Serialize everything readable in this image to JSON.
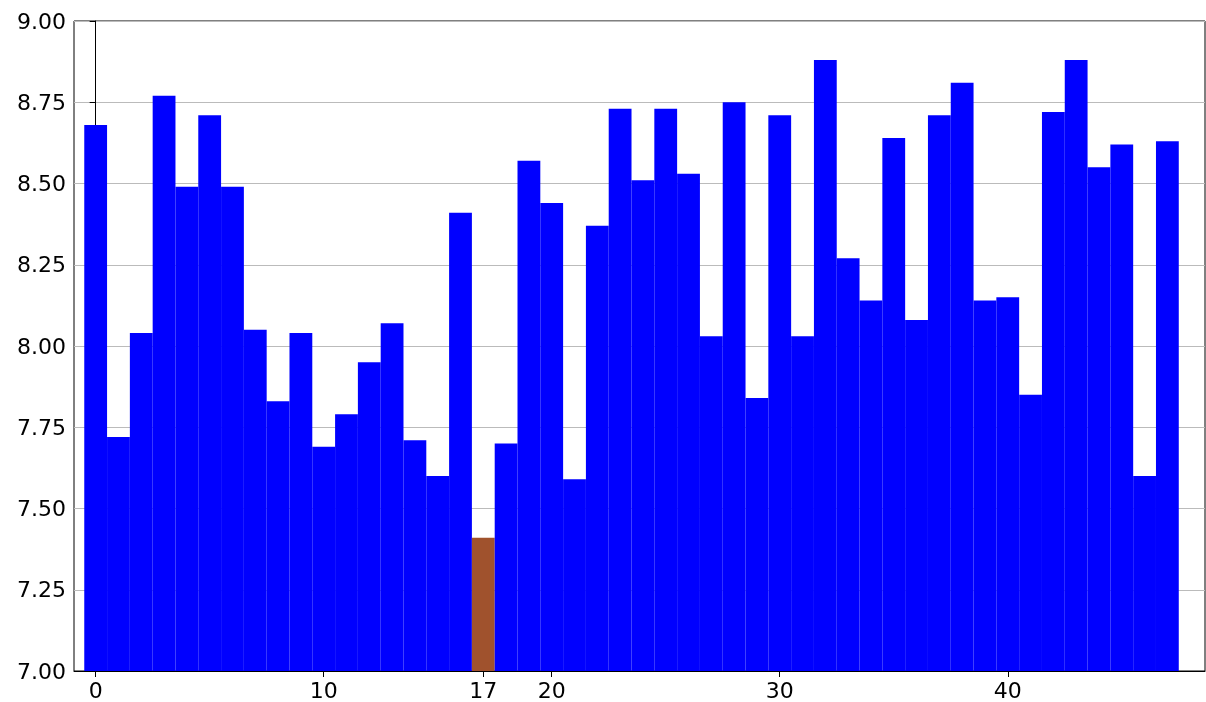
{
  "chart_data": {
    "type": "bar",
    "x": [
      0,
      1,
      2,
      3,
      4,
      5,
      6,
      7,
      8,
      9,
      10,
      11,
      12,
      13,
      14,
      15,
      16,
      17,
      18,
      19,
      20,
      21,
      22,
      23,
      24,
      25,
      26,
      27,
      28,
      29,
      30,
      31,
      32,
      33,
      34,
      35,
      36,
      37,
      38,
      39,
      40,
      41,
      42,
      43,
      44,
      45,
      46,
      47
    ],
    "values": [
      8.68,
      7.72,
      8.04,
      8.77,
      8.49,
      8.71,
      8.49,
      8.05,
      7.83,
      8.04,
      7.69,
      7.79,
      7.95,
      8.07,
      7.71,
      7.6,
      8.41,
      7.41,
      7.7,
      8.57,
      8.44,
      7.59,
      8.37,
      8.73,
      8.51,
      8.73,
      8.53,
      8.03,
      8.75,
      7.84,
      8.71,
      8.03,
      8.88,
      8.27,
      8.14,
      8.64,
      8.08,
      8.71,
      8.81,
      8.14,
      8.15,
      7.85,
      8.72,
      8.88,
      8.55,
      8.62,
      7.6,
      8.63
    ],
    "colors": [
      "#0000ff",
      "#0000ff",
      "#0000ff",
      "#0000ff",
      "#0000ff",
      "#0000ff",
      "#0000ff",
      "#0000ff",
      "#0000ff",
      "#0000ff",
      "#0000ff",
      "#0000ff",
      "#0000ff",
      "#0000ff",
      "#0000ff",
      "#0000ff",
      "#0000ff",
      "#a0522d",
      "#0000ff",
      "#0000ff",
      "#0000ff",
      "#0000ff",
      "#0000ff",
      "#0000ff",
      "#0000ff",
      "#0000ff",
      "#0000ff",
      "#0000ff",
      "#0000ff",
      "#0000ff",
      "#0000ff",
      "#0000ff",
      "#0000ff",
      "#0000ff",
      "#0000ff",
      "#0000ff",
      "#0000ff",
      "#0000ff",
      "#0000ff",
      "#0000ff",
      "#0000ff",
      "#0000ff",
      "#0000ff",
      "#0000ff",
      "#0000ff",
      "#0000ff",
      "#0000ff",
      "#0000ff"
    ],
    "xlim": [
      -0.95,
      48.65
    ],
    "xticks": [
      0,
      10,
      17,
      20,
      30,
      40
    ],
    "ylim": [
      7,
      9
    ],
    "yticks": [
      {
        "value": 7,
        "label": "7.00"
      },
      {
        "value": 7.25,
        "label": "7.25"
      },
      {
        "value": 7.5,
        "label": "7.50"
      },
      {
        "value": 7.75,
        "label": "7.75"
      },
      {
        "value": 8,
        "label": "8.00"
      },
      {
        "value": 8.25,
        "label": "8.25"
      },
      {
        "value": 8.5,
        "label": "8.50"
      },
      {
        "value": 8.75,
        "label": "8.75"
      },
      {
        "value": 9,
        "label": "9.00"
      }
    ],
    "grid": "y"
  }
}
